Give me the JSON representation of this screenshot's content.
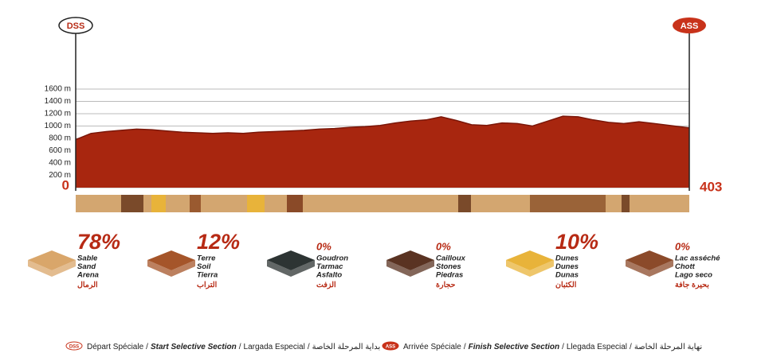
{
  "chart_data": {
    "type": "area",
    "start_marker": "DSS",
    "end_marker": "ASS",
    "total_distance": 403,
    "color": "#a8260f",
    "edge_color": "#7a1608",
    "grid": true,
    "x": [
      0,
      10,
      20,
      30,
      40,
      50,
      60,
      70,
      80,
      90,
      100,
      110,
      120,
      130,
      140,
      150,
      160,
      170,
      180,
      190,
      200,
      210,
      220,
      230,
      240,
      250,
      260,
      270,
      280,
      290,
      300,
      310,
      320,
      330,
      340,
      350,
      360,
      370,
      380,
      390,
      400,
      403
    ],
    "values": [
      780,
      880,
      910,
      930,
      950,
      940,
      920,
      900,
      890,
      880,
      890,
      880,
      900,
      910,
      920,
      930,
      950,
      960,
      980,
      990,
      1010,
      1050,
      1080,
      1100,
      1150,
      1090,
      1020,
      1010,
      1050,
      1040,
      1000,
      1080,
      1160,
      1150,
      1100,
      1060,
      1040,
      1070,
      1040,
      1010,
      980,
      970
    ],
    "xlim": [
      0,
      403
    ],
    "ylim": [
      0,
      1600
    ],
    "yticks": [
      0,
      {
        "value": 200,
        "label": "200 m"
      },
      {
        "value": 400,
        "label": "400 m"
      },
      {
        "value": 600,
        "label": "600 m"
      },
      {
        "value": 800,
        "label": "800 m"
      },
      {
        "value": 1000,
        "label": "1000 m"
      },
      {
        "value": 1200,
        "label": "1200 m"
      },
      {
        "value": 1400,
        "label": "1400 m"
      },
      {
        "value": 1600,
        "label": "1600 m"
      }
    ]
  },
  "surfaces": [
    {
      "percent": "78%",
      "names": [
        "Sable",
        "Sand",
        "Arena",
        "الرمال"
      ],
      "color": "#d9a66a"
    },
    {
      "percent": "12%",
      "names": [
        "Terre",
        "Soil",
        "Tierra",
        "التراب"
      ],
      "color": "#a5552a"
    },
    {
      "percent": "0%",
      "names": [
        "Goudron",
        "Tarmac",
        "Asfalto",
        "الزفت"
      ],
      "color": "#2d3433"
    },
    {
      "percent": "0%",
      "names": [
        "Cailloux",
        "Stones",
        "Piedras",
        "حجارة"
      ],
      "color": "#5a3322"
    },
    {
      "percent": "10%",
      "names": [
        "Dunes",
        "Dunes",
        "Dunas",
        "الكثبان"
      ],
      "color": "#e8b33a"
    },
    {
      "percent": "0%",
      "names": [
        "Lac asséché",
        "Chott",
        "Lago seco",
        "بحيرة جافة"
      ],
      "color": "#8b4a2a"
    }
  ],
  "legend": {
    "separator": "/",
    "start": [
      "Départ Spéciale",
      "Start Selective Section",
      "Largada Especial",
      "بداية المرحلة الخاصة"
    ],
    "end": [
      "Arrivée Spéciale",
      "Finish Selective Section",
      "Llegada Especial",
      "نهاية المرحلة الخاصة"
    ]
  }
}
